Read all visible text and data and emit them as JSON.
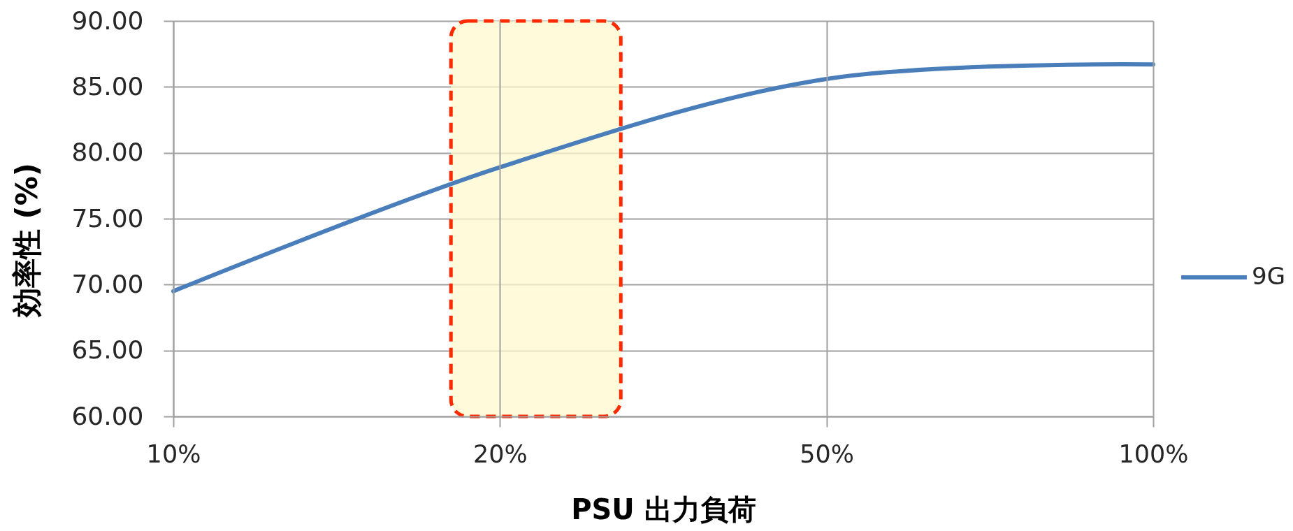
{
  "chart_data": {
    "type": "line",
    "xlabel": "PSU 出力負荷",
    "ylabel": "効率性 (%)",
    "categories": [
      "10%",
      "20%",
      "50%",
      "100%"
    ],
    "series": [
      {
        "name": "9G",
        "color": "#4a7ebb",
        "values": [
          69.5,
          78.9,
          85.6,
          86.7
        ]
      }
    ],
    "ylim": [
      60,
      90
    ],
    "yticks": [
      {
        "value": 60,
        "label": "60.00"
      },
      {
        "value": 65,
        "label": "65.00"
      },
      {
        "value": 70,
        "label": "70.00"
      },
      {
        "value": 75,
        "label": "75.00"
      },
      {
        "value": 80,
        "label": "80.00"
      },
      {
        "value": 85,
        "label": "85.00"
      },
      {
        "value": 90,
        "label": "90.00"
      }
    ],
    "grid": true,
    "legend": "right",
    "bands": [
      {
        "axis": "x",
        "from": "20%",
        "to": "20%",
        "color": "#fffacd"
      }
    ]
  }
}
